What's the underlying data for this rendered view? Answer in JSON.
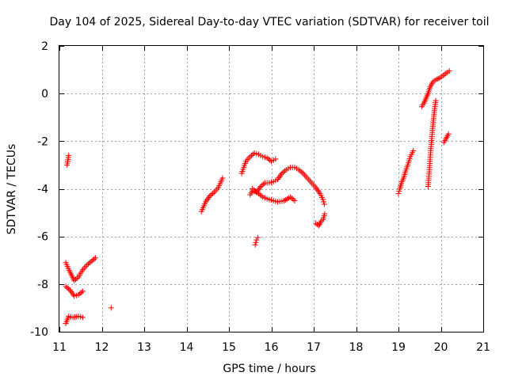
{
  "chart_data": {
    "type": "scatter",
    "title": "Day 104 of 2025, Sidereal Day-to-day VTEC variation (SDTVAR) for receiver toil",
    "xlabel": "GPS time / hours",
    "ylabel": "SDTVAR / TECUs",
    "xlim": [
      11,
      21
    ],
    "ylim": [
      -10,
      2
    ],
    "xticks": [
      11,
      12,
      13,
      14,
      15,
      16,
      17,
      18,
      19,
      20,
      21
    ],
    "yticks": [
      -10,
      -8,
      -6,
      -4,
      -2,
      0,
      2
    ],
    "grid": true,
    "marker": "+",
    "color": "#ff0000",
    "series": [
      {
        "name": "seg-a",
        "points": [
          [
            11.18,
            -3.0
          ],
          [
            11.22,
            -2.6
          ]
        ]
      },
      {
        "name": "seg-b",
        "points": [
          [
            11.15,
            -7.1
          ],
          [
            11.25,
            -7.5
          ],
          [
            11.35,
            -7.85
          ],
          [
            11.45,
            -7.7
          ],
          [
            11.55,
            -7.4
          ],
          [
            11.65,
            -7.2
          ],
          [
            11.75,
            -7.05
          ],
          [
            11.85,
            -6.9
          ]
        ]
      },
      {
        "name": "seg-c",
        "points": [
          [
            11.15,
            -8.1
          ],
          [
            11.25,
            -8.25
          ],
          [
            11.35,
            -8.5
          ],
          [
            11.45,
            -8.45
          ],
          [
            11.55,
            -8.3
          ]
        ]
      },
      {
        "name": "seg-d",
        "points": [
          [
            11.15,
            -9.65
          ],
          [
            11.22,
            -9.35
          ],
          [
            11.32,
            -9.4
          ],
          [
            11.45,
            -9.35
          ],
          [
            11.55,
            -9.4
          ]
        ]
      },
      {
        "name": "seg-e",
        "points": [
          [
            12.22,
            -9.0
          ]
        ]
      },
      {
        "name": "seg-f",
        "points": [
          [
            14.35,
            -4.95
          ],
          [
            14.45,
            -4.55
          ],
          [
            14.55,
            -4.3
          ],
          [
            14.65,
            -4.15
          ],
          [
            14.75,
            -3.95
          ],
          [
            14.85,
            -3.55
          ]
        ]
      },
      {
        "name": "seg-g",
        "points": [
          [
            15.3,
            -3.35
          ],
          [
            15.4,
            -2.85
          ],
          [
            15.5,
            -2.65
          ],
          [
            15.6,
            -2.5
          ],
          [
            15.7,
            -2.55
          ],
          [
            15.8,
            -2.65
          ],
          [
            15.9,
            -2.7
          ],
          [
            16.0,
            -2.85
          ],
          [
            16.1,
            -2.75
          ]
        ]
      },
      {
        "name": "seg-h",
        "points": [
          [
            15.5,
            -4.25
          ],
          [
            15.55,
            -4.1
          ],
          [
            15.65,
            -4.15
          ],
          [
            15.75,
            -3.9
          ],
          [
            15.85,
            -3.75
          ],
          [
            15.95,
            -3.75
          ],
          [
            16.05,
            -3.7
          ],
          [
            16.15,
            -3.6
          ],
          [
            16.25,
            -3.35
          ],
          [
            16.35,
            -3.2
          ],
          [
            16.45,
            -3.1
          ],
          [
            16.55,
            -3.1
          ],
          [
            16.65,
            -3.2
          ],
          [
            16.75,
            -3.35
          ],
          [
            16.85,
            -3.55
          ],
          [
            16.95,
            -3.75
          ],
          [
            17.05,
            -3.95
          ],
          [
            17.15,
            -4.2
          ],
          [
            17.22,
            -4.45
          ],
          [
            17.25,
            -4.65
          ]
        ]
      },
      {
        "name": "seg-i",
        "points": [
          [
            15.55,
            -4.0
          ],
          [
            15.7,
            -4.2
          ],
          [
            15.8,
            -4.35
          ],
          [
            15.95,
            -4.45
          ],
          [
            16.05,
            -4.5
          ],
          [
            16.15,
            -4.55
          ],
          [
            16.3,
            -4.5
          ],
          [
            16.45,
            -4.35
          ],
          [
            16.55,
            -4.5
          ]
        ]
      },
      {
        "name": "seg-j",
        "points": [
          [
            15.62,
            -6.35
          ],
          [
            15.65,
            -6.15
          ],
          [
            15.68,
            -6.05
          ]
        ]
      },
      {
        "name": "seg-k",
        "points": [
          [
            17.05,
            -5.45
          ],
          [
            17.12,
            -5.55
          ],
          [
            17.18,
            -5.35
          ],
          [
            17.22,
            -5.3
          ],
          [
            17.26,
            -5.05
          ]
        ]
      },
      {
        "name": "seg-l",
        "points": [
          [
            19.0,
            -4.2
          ],
          [
            19.03,
            -4.0
          ],
          [
            19.08,
            -3.7
          ],
          [
            19.12,
            -3.55
          ],
          [
            19.17,
            -3.25
          ],
          [
            19.22,
            -3.0
          ],
          [
            19.28,
            -2.65
          ],
          [
            19.35,
            -2.4
          ]
        ]
      },
      {
        "name": "seg-m",
        "points": [
          [
            19.55,
            -0.55
          ],
          [
            19.6,
            -0.4
          ],
          [
            19.65,
            -0.2
          ],
          [
            19.7,
            0.0
          ],
          [
            19.75,
            0.3
          ],
          [
            19.82,
            0.5
          ],
          [
            19.9,
            0.6
          ],
          [
            19.97,
            0.65
          ],
          [
            20.05,
            0.75
          ],
          [
            20.12,
            0.85
          ],
          [
            20.2,
            0.95
          ]
        ]
      },
      {
        "name": "seg-n",
        "points": [
          [
            19.7,
            -3.9
          ],
          [
            19.73,
            -3.2
          ],
          [
            19.76,
            -2.4
          ],
          [
            19.79,
            -1.8
          ],
          [
            19.82,
            -1.2
          ],
          [
            19.85,
            -0.7
          ],
          [
            19.88,
            -0.3
          ]
        ]
      },
      {
        "name": "seg-o",
        "points": [
          [
            20.07,
            -2.05
          ],
          [
            20.12,
            -1.9
          ],
          [
            20.18,
            -1.7
          ]
        ]
      }
    ]
  }
}
